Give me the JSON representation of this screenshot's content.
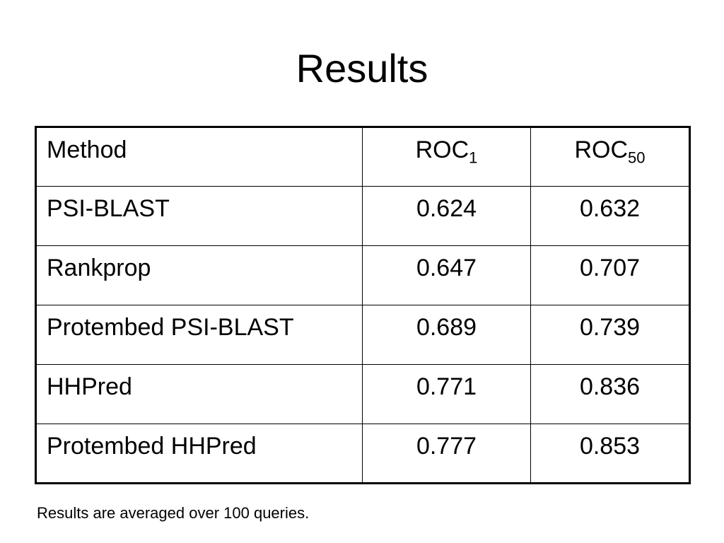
{
  "slide": {
    "title": "Results",
    "table": {
      "headers": {
        "method": "Method",
        "roc1_base": "ROC",
        "roc1_sub": "1",
        "roc50_base": "ROC",
        "roc50_sub": "50"
      },
      "rows": [
        {
          "method": "PSI-BLAST",
          "roc1": "0.624",
          "roc50": "0.632"
        },
        {
          "method": "Rankprop",
          "roc1": "0.647",
          "roc50": "0.707"
        },
        {
          "method": "Protembed PSI-BLAST",
          "roc1": "0.689",
          "roc50": "0.739"
        },
        {
          "method": "HHPred",
          "roc1": "0.771",
          "roc50": "0.836"
        },
        {
          "method": "Protembed HHPred",
          "roc1": "0.777",
          "roc50": "0.853"
        }
      ]
    },
    "footnote": "Results are averaged over 100 queries."
  }
}
